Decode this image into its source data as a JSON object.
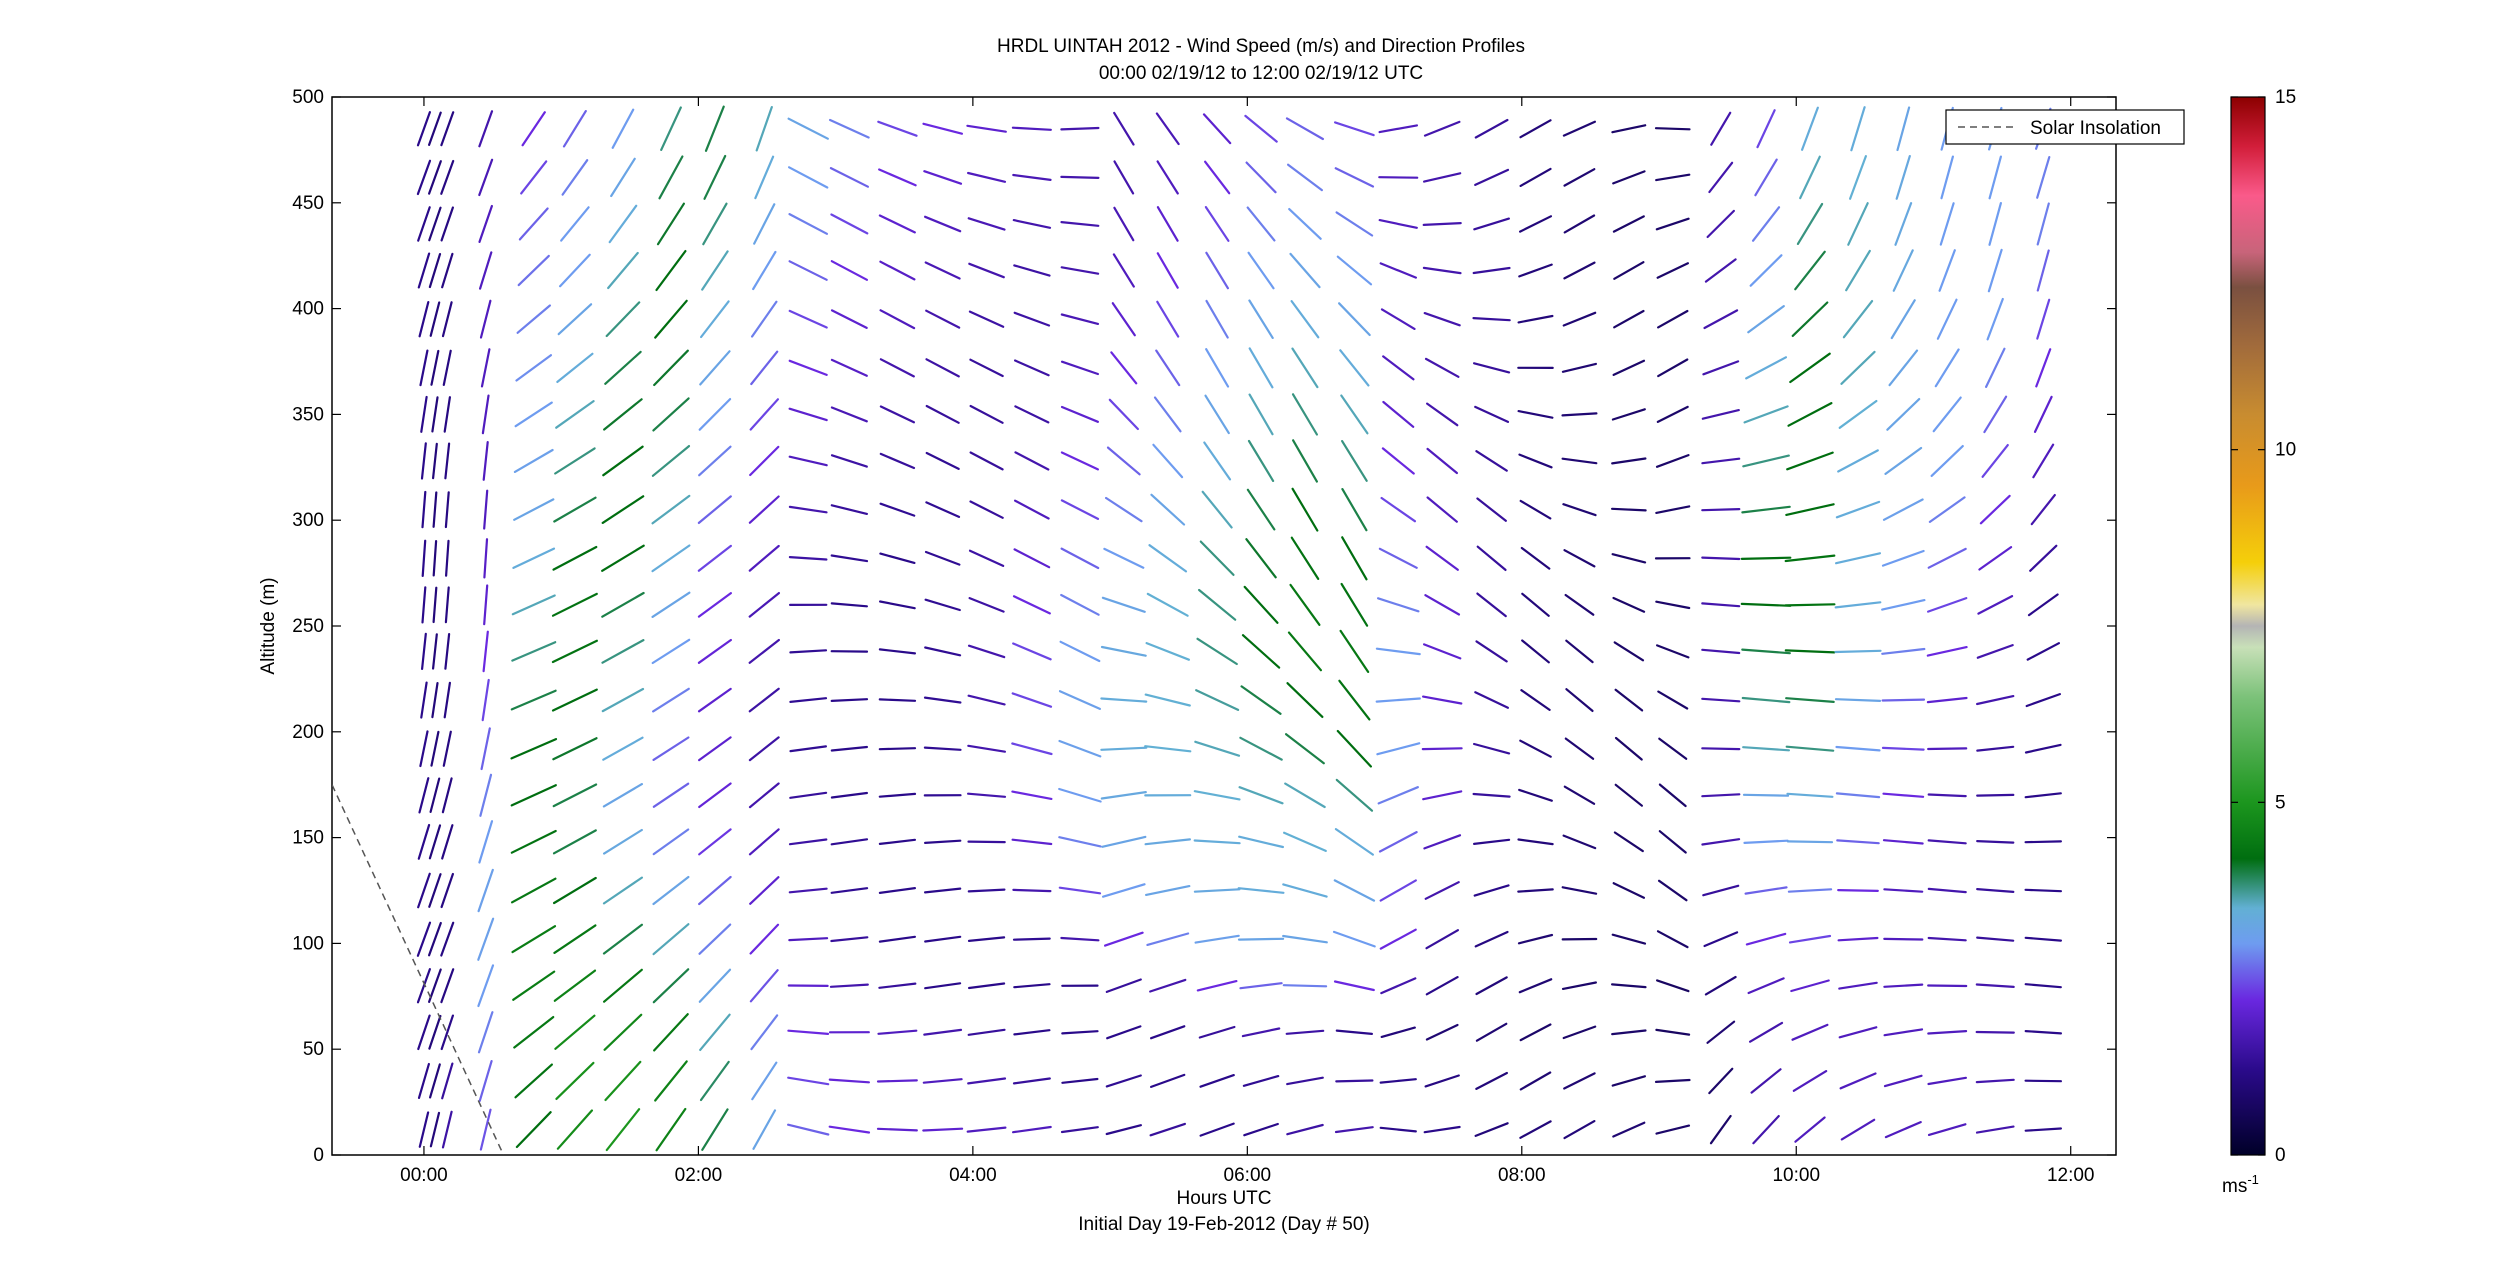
{
  "figure": {
    "title_line1": "HRDL UINTAH 2012 - Wind Speed (m/s) and Direction Profiles",
    "title_line2": "00:00 02/19/12 to 12:00 02/19/12  UTC",
    "xlabel": "Hours UTC",
    "xsubtitle": "Initial Day 19-Feb-2012 (Day # 50)",
    "ylabel": "Altitude (m)",
    "legend_label": "Solar Insolation",
    "colorbar_unit": "ms",
    "colorbar_unit_exp": "-1"
  },
  "chart_data": {
    "type": "scatter",
    "subtype": "wind-barb-profile",
    "title": "HRDL UINTAH 2012 - Wind Speed (m/s) and Direction Profiles",
    "xlabel": "Hours UTC",
    "ylabel": "Altitude (m)",
    "xlim": [
      -0.67,
      12.33
    ],
    "ylim": [
      0,
      500
    ],
    "x_ticks": [
      {
        "value": 0,
        "label": "00:00"
      },
      {
        "value": 2,
        "label": "02:00"
      },
      {
        "value": 4,
        "label": "04:00"
      },
      {
        "value": 6,
        "label": "06:00"
      },
      {
        "value": 8,
        "label": "08:00"
      },
      {
        "value": 10,
        "label": "10:00"
      },
      {
        "value": 12,
        "label": "12:00"
      }
    ],
    "y_ticks": [
      0,
      50,
      100,
      150,
      200,
      250,
      300,
      350,
      400,
      450,
      500
    ],
    "colorbar": {
      "min": 0,
      "max": 15,
      "ticks": [
        0,
        5,
        10,
        15
      ],
      "stops": [
        {
          "v": 0,
          "color": "#000028"
        },
        {
          "v": 1.2,
          "color": "#2a0a8a"
        },
        {
          "v": 2.2,
          "color": "#6a28e0"
        },
        {
          "v": 3.0,
          "color": "#6e9cf0"
        },
        {
          "v": 3.5,
          "color": "#62b0d4"
        },
        {
          "v": 4.2,
          "color": "#006e10"
        },
        {
          "v": 5.0,
          "color": "#1c961e"
        },
        {
          "v": 6.5,
          "color": "#7cc27a"
        },
        {
          "v": 7.2,
          "color": "#c8e0b8"
        },
        {
          "v": 7.5,
          "color": "#b4b4b4"
        },
        {
          "v": 7.8,
          "color": "#f0e6a0"
        },
        {
          "v": 8.4,
          "color": "#f5cf0a"
        },
        {
          "v": 9.5,
          "color": "#e89a1a"
        },
        {
          "v": 10.5,
          "color": "#c88c30"
        },
        {
          "v": 11.5,
          "color": "#a06a3c"
        },
        {
          "v": 12.3,
          "color": "#7a5040"
        },
        {
          "v": 12.8,
          "color": "#c8647a"
        },
        {
          "v": 13.6,
          "color": "#fa5a8a"
        },
        {
          "v": 14.3,
          "color": "#d21e3a"
        },
        {
          "v": 15,
          "color": "#8c0000"
        }
      ]
    },
    "solar_insolation": {
      "name": "Solar Insolation",
      "style": "dashed",
      "points": [
        [
          -0.67,
          175
        ],
        [
          0.58,
          0
        ]
      ]
    },
    "profiles": {
      "times": [
        0.0,
        0.08,
        0.17,
        0.45,
        0.8,
        1.1,
        1.45,
        1.8,
        2.12,
        2.48,
        2.8,
        3.1,
        3.45,
        3.78,
        4.1,
        4.43,
        4.78,
        5.1,
        5.42,
        5.78,
        6.1,
        6.42,
        6.78,
        7.1,
        7.42,
        7.78,
        8.1,
        8.42,
        8.78,
        9.1,
        9.45,
        9.78,
        10.1,
        10.45,
        10.78,
        11.1,
        11.45,
        11.8
      ],
      "altitudes": [
        12,
        35,
        58,
        80,
        102,
        125,
        148,
        170,
        192,
        215,
        238,
        260,
        282,
        305,
        328,
        350,
        372,
        395,
        418,
        440,
        462,
        485
      ],
      "speed_field": [
        [
          1.2,
          1.0,
          1.5,
          2.5,
          4.2,
          4.8,
          5.0,
          4.6,
          4.0,
          3.2,
          2.6,
          2.2,
          2.0,
          2.0,
          1.8,
          1.8,
          1.4,
          1.2,
          1.4,
          1.2,
          1.2,
          1.5,
          1.6,
          1.2,
          1.2,
          1.0,
          1.0,
          1.0,
          0.9,
          0.8,
          0.8,
          1.6,
          1.8,
          1.8,
          1.8,
          1.8,
          1.6,
          1.2
        ],
        [
          1.2,
          1.0,
          1.4,
          2.6,
          4.3,
          4.9,
          4.9,
          4.6,
          3.9,
          3.1,
          2.4,
          2.1,
          2.0,
          1.8,
          1.6,
          1.4,
          1.2,
          1.3,
          1.2,
          1.2,
          1.3,
          1.4,
          1.4,
          1.2,
          1.1,
          1.0,
          0.9,
          0.9,
          0.8,
          0.8,
          0.8,
          1.6,
          1.8,
          1.8,
          1.8,
          1.8,
          1.6,
          1.2
        ],
        [
          1.2,
          1.0,
          1.2,
          2.8,
          4.4,
          4.8,
          4.7,
          4.4,
          3.6,
          2.8,
          2.2,
          2.0,
          1.8,
          1.6,
          1.4,
          1.2,
          1.2,
          1.2,
          1.2,
          1.4,
          1.6,
          1.5,
          1.2,
          1.0,
          0.9,
          0.9,
          0.8,
          0.8,
          0.8,
          0.7,
          0.9,
          1.6,
          1.8,
          1.8,
          1.8,
          1.8,
          1.6,
          1.2
        ],
        [
          1.2,
          1.0,
          1.1,
          3.0,
          4.5,
          4.6,
          4.4,
          4.0,
          3.2,
          2.5,
          2.0,
          1.6,
          1.4,
          1.2,
          1.2,
          1.2,
          1.2,
          1.4,
          1.6,
          2.2,
          2.6,
          2.8,
          2.2,
          1.6,
          1.2,
          1.0,
          0.9,
          0.8,
          0.8,
          0.7,
          1.0,
          1.8,
          2.0,
          1.8,
          1.8,
          1.8,
          1.6,
          1.2
        ],
        [
          1.2,
          1.0,
          1.1,
          3.1,
          4.5,
          4.4,
          4.0,
          3.6,
          2.8,
          2.2,
          1.8,
          1.4,
          1.2,
          1.2,
          1.2,
          1.3,
          1.6,
          2.2,
          2.8,
          3.1,
          3.2,
          3.2,
          3.0,
          2.2,
          1.4,
          1.1,
          0.9,
          0.8,
          0.8,
          0.8,
          1.2,
          2.2,
          2.4,
          2.0,
          1.8,
          1.6,
          1.4,
          1.2
        ],
        [
          1.2,
          1.0,
          1.1,
          3.1,
          4.4,
          4.2,
          3.6,
          3.2,
          2.6,
          2.0,
          1.6,
          1.3,
          1.2,
          1.2,
          1.3,
          1.6,
          2.4,
          3.0,
          3.2,
          3.3,
          3.4,
          3.4,
          3.2,
          2.4,
          1.6,
          1.2,
          1.0,
          0.9,
          0.8,
          0.8,
          1.4,
          2.6,
          2.8,
          2.2,
          1.8,
          1.6,
          1.4,
          1.2
        ],
        [
          1.2,
          1.0,
          1.1,
          3.0,
          4.3,
          4.0,
          3.3,
          2.8,
          2.3,
          1.8,
          1.5,
          1.3,
          1.2,
          1.2,
          1.4,
          2.0,
          2.8,
          3.2,
          3.3,
          3.4,
          3.4,
          3.5,
          3.4,
          2.6,
          1.8,
          1.2,
          1.0,
          0.9,
          0.8,
          0.8,
          1.6,
          3.0,
          3.2,
          2.6,
          2.0,
          1.6,
          1.4,
          1.2
        ],
        [
          1.2,
          1.0,
          1.1,
          2.8,
          4.2,
          4.0,
          3.2,
          2.6,
          2.1,
          1.6,
          1.4,
          1.2,
          1.2,
          1.3,
          1.6,
          2.2,
          3.0,
          3.3,
          3.4,
          3.5,
          3.6,
          3.6,
          3.8,
          2.8,
          2.0,
          1.4,
          1.0,
          0.9,
          0.8,
          0.8,
          1.6,
          3.2,
          3.4,
          2.8,
          2.2,
          1.6,
          1.4,
          1.2
        ],
        [
          1.2,
          1.0,
          1.1,
          2.6,
          4.2,
          4.1,
          3.4,
          2.6,
          2.0,
          1.5,
          1.3,
          1.2,
          1.2,
          1.3,
          1.6,
          2.4,
          3.1,
          3.4,
          3.5,
          3.6,
          3.8,
          4.0,
          4.2,
          3.0,
          2.0,
          1.4,
          1.0,
          0.9,
          0.8,
          0.8,
          1.6,
          3.6,
          3.8,
          3.0,
          2.4,
          1.8,
          1.4,
          1.2
        ],
        [
          1.2,
          1.0,
          1.1,
          2.4,
          4.0,
          4.2,
          3.6,
          2.8,
          2.0,
          1.5,
          1.3,
          1.2,
          1.2,
          1.3,
          1.6,
          2.4,
          3.1,
          3.4,
          3.5,
          3.7,
          4.0,
          4.2,
          4.3,
          3.0,
          2.0,
          1.4,
          1.0,
          0.9,
          0.8,
          0.8,
          1.6,
          3.8,
          4.0,
          3.2,
          2.6,
          2.0,
          1.6,
          1.2
        ],
        [
          1.2,
          1.0,
          1.1,
          2.2,
          3.8,
          4.3,
          3.8,
          3.0,
          2.1,
          1.6,
          1.3,
          1.2,
          1.2,
          1.3,
          1.6,
          2.4,
          3.0,
          3.3,
          3.5,
          3.8,
          4.2,
          4.4,
          4.4,
          3.0,
          2.0,
          1.4,
          1.0,
          0.9,
          0.8,
          0.8,
          1.6,
          4.0,
          4.2,
          3.4,
          2.8,
          2.2,
          1.6,
          1.2
        ],
        [
          1.2,
          1.0,
          1.1,
          2.0,
          3.6,
          4.3,
          4.0,
          3.2,
          2.2,
          1.7,
          1.4,
          1.2,
          1.2,
          1.3,
          1.5,
          2.2,
          2.8,
          3.2,
          3.5,
          3.8,
          4.2,
          4.4,
          4.3,
          2.8,
          2.0,
          1.4,
          1.0,
          0.9,
          0.8,
          0.8,
          1.6,
          4.2,
          4.3,
          3.4,
          3.0,
          2.4,
          1.8,
          1.2
        ],
        [
          1.2,
          1.0,
          1.1,
          1.9,
          3.4,
          4.2,
          4.2,
          3.4,
          2.4,
          1.8,
          1.5,
          1.3,
          1.2,
          1.3,
          1.5,
          2.0,
          2.6,
          3.0,
          3.4,
          3.8,
          4.1,
          4.3,
          4.2,
          2.6,
          2.0,
          1.4,
          1.0,
          0.9,
          0.8,
          0.8,
          1.6,
          4.2,
          4.3,
          3.4,
          3.0,
          2.6,
          2.0,
          1.4
        ],
        [
          1.2,
          1.0,
          1.1,
          1.8,
          3.2,
          4.0,
          4.2,
          3.6,
          2.6,
          2.0,
          1.6,
          1.4,
          1.3,
          1.3,
          1.4,
          1.8,
          2.4,
          2.8,
          3.2,
          3.6,
          4.0,
          4.2,
          4.0,
          2.4,
          1.8,
          1.4,
          1.0,
          0.9,
          0.8,
          0.8,
          1.6,
          4.0,
          4.2,
          3.4,
          3.1,
          2.8,
          2.2,
          1.6
        ],
        [
          1.2,
          1.0,
          1.1,
          1.8,
          3.1,
          3.8,
          4.2,
          3.8,
          2.8,
          2.2,
          1.8,
          1.5,
          1.4,
          1.3,
          1.4,
          1.6,
          2.2,
          2.6,
          3.0,
          3.4,
          3.8,
          4.0,
          3.8,
          2.2,
          1.8,
          1.4,
          1.0,
          0.9,
          0.8,
          0.8,
          1.6,
          3.8,
          4.2,
          3.4,
          3.2,
          3.0,
          2.4,
          1.8
        ],
        [
          1.2,
          1.0,
          1.1,
          1.8,
          3.0,
          3.6,
          4.1,
          4.0,
          3.0,
          2.4,
          2.0,
          1.7,
          1.5,
          1.4,
          1.4,
          1.5,
          2.0,
          2.4,
          2.8,
          3.2,
          3.6,
          3.8,
          3.6,
          2.0,
          1.6,
          1.4,
          1.0,
          0.9,
          0.8,
          0.8,
          1.6,
          3.6,
          4.2,
          3.5,
          3.2,
          3.0,
          2.6,
          2.0
        ],
        [
          1.2,
          1.0,
          1.1,
          1.8,
          2.9,
          3.4,
          4.0,
          4.1,
          3.2,
          2.6,
          2.2,
          1.9,
          1.6,
          1.5,
          1.4,
          1.5,
          1.8,
          2.2,
          2.6,
          3.0,
          3.4,
          3.6,
          3.4,
          1.8,
          1.6,
          1.4,
          1.0,
          0.9,
          0.8,
          0.8,
          1.6,
          3.4,
          4.2,
          3.6,
          3.2,
          3.0,
          2.8,
          2.2
        ],
        [
          1.2,
          1.0,
          1.1,
          1.8,
          2.8,
          3.2,
          3.8,
          4.2,
          3.4,
          2.8,
          2.4,
          2.0,
          1.8,
          1.6,
          1.5,
          1.5,
          1.7,
          2.0,
          2.4,
          2.8,
          3.2,
          3.4,
          3.2,
          1.8,
          1.6,
          1.4,
          1.0,
          0.9,
          0.8,
          0.8,
          1.6,
          3.2,
          4.1,
          3.6,
          3.2,
          3.0,
          3.0,
          2.4
        ],
        [
          1.2,
          1.0,
          1.1,
          1.8,
          2.7,
          3.0,
          3.6,
          4.2,
          3.6,
          3.0,
          2.6,
          2.2,
          1.9,
          1.7,
          1.6,
          1.5,
          1.6,
          1.8,
          2.2,
          2.6,
          3.0,
          3.2,
          3.0,
          1.8,
          1.6,
          1.4,
          1.0,
          0.9,
          0.8,
          0.8,
          1.6,
          3.0,
          4.0,
          3.6,
          3.3,
          3.0,
          3.0,
          2.6
        ],
        [
          1.2,
          1.0,
          1.1,
          1.8,
          2.6,
          3.0,
          3.4,
          4.1,
          3.8,
          3.2,
          2.8,
          2.4,
          2.0,
          1.8,
          1.7,
          1.6,
          1.6,
          1.7,
          2.0,
          2.4,
          2.8,
          3.0,
          2.8,
          1.8,
          1.6,
          1.4,
          1.0,
          0.9,
          0.8,
          0.8,
          1.6,
          2.8,
          3.8,
          3.6,
          3.3,
          3.0,
          3.0,
          2.8
        ],
        [
          1.2,
          1.0,
          1.1,
          1.7,
          2.4,
          2.8,
          3.2,
          4.0,
          4.0,
          3.4,
          3.0,
          2.6,
          2.2,
          2.0,
          1.8,
          1.7,
          1.6,
          1.6,
          1.8,
          2.2,
          2.6,
          2.8,
          2.6,
          1.8,
          1.6,
          1.4,
          1.0,
          0.9,
          0.8,
          0.8,
          1.6,
          2.6,
          3.6,
          3.5,
          3.3,
          3.0,
          3.0,
          2.8
        ],
        [
          1.2,
          1.0,
          1.1,
          1.6,
          2.2,
          2.6,
          3.0,
          3.8,
          4.0,
          3.6,
          3.2,
          2.8,
          2.4,
          2.2,
          2.0,
          1.8,
          1.6,
          1.6,
          1.7,
          2.0,
          2.4,
          2.6,
          2.4,
          1.8,
          1.6,
          1.4,
          1.0,
          0.9,
          0.8,
          0.8,
          1.6,
          2.4,
          3.4,
          3.4,
          3.2,
          3.0,
          3.0,
          2.8
        ]
      ]
    },
    "note": "Barbs span 00:00-12:00 in ~20 min steps and ~22 altitude levels; speeds (0-15 m/s) and directions estimated from barb color/orientation."
  }
}
